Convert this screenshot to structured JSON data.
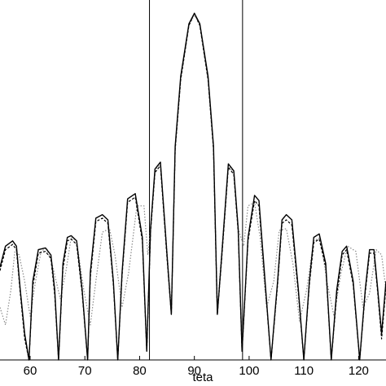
{
  "chart_data": {
    "type": "line",
    "title": "",
    "xlabel": "teta",
    "ylabel": "",
    "xlim": [
      54.5,
      125
    ],
    "ylim": [
      -1,
      1
    ],
    "x_ticks": [
      "60",
      "70",
      "80",
      "90",
      "100",
      "110",
      "120"
    ],
    "x_tick_values": [
      60,
      70,
      80,
      90,
      100,
      110,
      120
    ],
    "vertical_lines": [
      81.8,
      98.8
    ],
    "grid": false,
    "legend": "none",
    "colors": {
      "axis": "#000000",
      "solid": "#000000",
      "dashed": "#000000",
      "dotted": "#8a8a8a"
    },
    "series": [
      {
        "style": "solid",
        "x": [
          54.5,
          55.5,
          56.8,
          57.5,
          58.2,
          59.0,
          59.8,
          60.5,
          61.5,
          62.8,
          63.8,
          64.5,
          65.2,
          66.0,
          66.8,
          67.5,
          68.5,
          69.5,
          70.5,
          71.0,
          72.0,
          73.2,
          74.2,
          75.2,
          76.0,
          76.8,
          77.8,
          79.2,
          80.5,
          81.3,
          82.0,
          82.8,
          83.8,
          85.0,
          85.8,
          86.5,
          87.5,
          89.0,
          90.0,
          91.0,
          92.5,
          93.5,
          94.2,
          95.0,
          96.2,
          97.2,
          98.0,
          98.7,
          99.8,
          101.0,
          101.8,
          102.8,
          104.0,
          105.2,
          106.0,
          106.8,
          107.8,
          109.0,
          110.0,
          111.0,
          111.8,
          112.8,
          114.0,
          115.0,
          116.0,
          117.0,
          117.8,
          119.0,
          120.2,
          121.2,
          122.0,
          122.8,
          123.5,
          124.2,
          125.0
        ],
        "y": [
          -0.47,
          -0.35,
          -0.32,
          -0.35,
          -0.6,
          -0.85,
          -1.0,
          -0.55,
          -0.37,
          -0.36,
          -0.4,
          -0.6,
          -1.0,
          -0.45,
          -0.3,
          -0.29,
          -0.32,
          -0.6,
          -1.0,
          -0.5,
          -0.19,
          -0.17,
          -0.2,
          -0.55,
          -1.0,
          -0.5,
          -0.08,
          -0.05,
          -0.3,
          -0.95,
          -0.25,
          0.09,
          0.13,
          -0.4,
          -0.74,
          0.22,
          0.62,
          0.92,
          0.98,
          0.92,
          0.62,
          0.22,
          -0.74,
          -0.4,
          0.12,
          0.08,
          -0.25,
          -0.95,
          -0.3,
          -0.06,
          -0.09,
          -0.5,
          -1.0,
          -0.55,
          -0.2,
          -0.17,
          -0.2,
          -0.6,
          -1.0,
          -0.55,
          -0.3,
          -0.28,
          -0.45,
          -1.0,
          -0.6,
          -0.38,
          -0.35,
          -0.55,
          -1.0,
          -0.6,
          -0.37,
          -0.37,
          -0.6,
          -0.85,
          -0.55
        ]
      },
      {
        "style": "dashed",
        "x": [
          54.5,
          55.5,
          56.8,
          57.5,
          58.2,
          59.0,
          59.8,
          60.5,
          61.5,
          62.8,
          63.8,
          64.5,
          65.2,
          66.0,
          66.8,
          67.5,
          68.5,
          69.5,
          70.5,
          71.0,
          72.0,
          73.2,
          74.2,
          75.2,
          76.0,
          76.8,
          77.8,
          79.2,
          80.5,
          81.3,
          82.0,
          82.8,
          83.8,
          85.0,
          85.8,
          86.5,
          87.5,
          89.0,
          90.0,
          91.0,
          92.5,
          93.5,
          94.2,
          95.0,
          96.2,
          97.2,
          98.0,
          98.7,
          99.8,
          101.0,
          101.8,
          102.8,
          104.0,
          105.2,
          106.0,
          106.8,
          107.8,
          109.0,
          110.0,
          111.0,
          111.8,
          112.8,
          114.0,
          115.0,
          116.0,
          117.0,
          117.8,
          119.0,
          120.2,
          121.2,
          122.0,
          122.8,
          123.5,
          124.2,
          125.0
        ],
        "y": [
          -0.49,
          -0.37,
          -0.34,
          -0.37,
          -0.62,
          -0.88,
          -1.0,
          -0.58,
          -0.39,
          -0.38,
          -0.42,
          -0.63,
          -1.0,
          -0.48,
          -0.32,
          -0.31,
          -0.34,
          -0.62,
          -1.0,
          -0.53,
          -0.21,
          -0.19,
          -0.22,
          -0.57,
          -1.0,
          -0.52,
          -0.1,
          -0.07,
          -0.32,
          -0.95,
          -0.27,
          0.07,
          0.11,
          -0.42,
          -0.74,
          0.2,
          0.6,
          0.91,
          0.98,
          0.91,
          0.6,
          0.2,
          -0.74,
          -0.42,
          0.1,
          0.06,
          -0.27,
          -0.95,
          -0.32,
          -0.09,
          -0.12,
          -0.52,
          -1.0,
          -0.57,
          -0.22,
          -0.2,
          -0.23,
          -0.62,
          -1.0,
          -0.57,
          -0.33,
          -0.31,
          -0.47,
          -1.0,
          -0.63,
          -0.4,
          -0.37,
          -0.57,
          -1.0,
          -0.62,
          -0.39,
          -0.39,
          -0.62,
          -0.88,
          -0.58
        ]
      },
      {
        "style": "dotted",
        "x": [
          54.5,
          55.5,
          56.5,
          57.2,
          58.0,
          59.0,
          60.0,
          61.0,
          62.0,
          63.0,
          64.0,
          65.5,
          66.5,
          67.5,
          68.5,
          69.8,
          71.0,
          72.0,
          73.2,
          74.5,
          75.5,
          76.8,
          78.0,
          79.5,
          80.8,
          81.5,
          82.0,
          82.8,
          83.8,
          85.0,
          85.8,
          86.5,
          87.5,
          89.0,
          90.0,
          91.0,
          92.5,
          93.5,
          94.2,
          95.0,
          96.2,
          97.2,
          98.0,
          99.0,
          99.8,
          101.0,
          102.0,
          103.2,
          104.5,
          105.5,
          106.8,
          108.0,
          109.2,
          110.5,
          111.8,
          113.0,
          114.2,
          115.5,
          116.8,
          118.0,
          119.5,
          120.8,
          122.0,
          123.2,
          124.2,
          125.0
        ],
        "y": [
          -0.7,
          -0.8,
          -0.6,
          -0.38,
          -0.4,
          -0.55,
          -0.75,
          -0.55,
          -0.38,
          -0.36,
          -0.45,
          -0.65,
          -0.5,
          -0.3,
          -0.32,
          -0.6,
          -0.8,
          -0.55,
          -0.27,
          -0.25,
          -0.4,
          -0.7,
          -0.5,
          -0.12,
          -0.12,
          -0.4,
          -0.25,
          0.08,
          0.12,
          -0.38,
          -0.72,
          0.2,
          0.6,
          0.91,
          0.97,
          0.91,
          0.6,
          0.2,
          -0.72,
          -0.38,
          0.11,
          0.07,
          -0.25,
          -0.35,
          -0.12,
          -0.1,
          -0.3,
          -0.7,
          -0.55,
          -0.26,
          -0.25,
          -0.45,
          -0.78,
          -0.6,
          -0.32,
          -0.3,
          -0.55,
          -0.75,
          -0.5,
          -0.35,
          -0.38,
          -0.7,
          -0.62,
          -0.37,
          -0.4,
          -0.6
        ]
      }
    ]
  }
}
